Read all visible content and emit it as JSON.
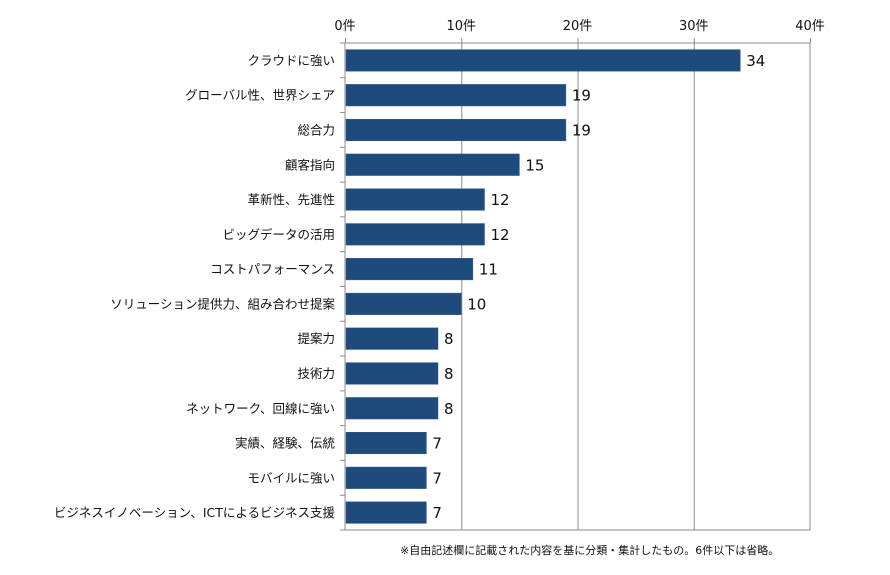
{
  "chart_data": {
    "type": "bar",
    "orientation": "horizontal",
    "categories": [
      "クラウドに強い",
      "グローバル性、世界シェア",
      "総合力",
      "顧客指向",
      "革新性、先進性",
      "ビッグデータの活用",
      "コストパフォーマンス",
      "ソリューション提供力、組み合わせ提案",
      "提案力",
      "技術力",
      "ネットワーク、回線に強い",
      "実績、経験、伝統",
      "モバイルに強い",
      "ビジネスイノベーション、ICTによるビジネス支援"
    ],
    "values": [
      34,
      19,
      19,
      15,
      12,
      12,
      11,
      10,
      8,
      8,
      8,
      7,
      7,
      7
    ],
    "xlim": [
      0,
      40
    ],
    "xticks": [
      0,
      10,
      20,
      30,
      40
    ],
    "xtick_labels": [
      "0件",
      "10件",
      "20件",
      "30件",
      "40件"
    ],
    "xaxis_position": "top",
    "grid": true,
    "bar_color": "#1f4a7c",
    "title": "",
    "xlabel": "",
    "ylabel": ""
  },
  "note": "※自由記述欄に記載された内容を基に分類・集計したもの。6件以下は省略。"
}
